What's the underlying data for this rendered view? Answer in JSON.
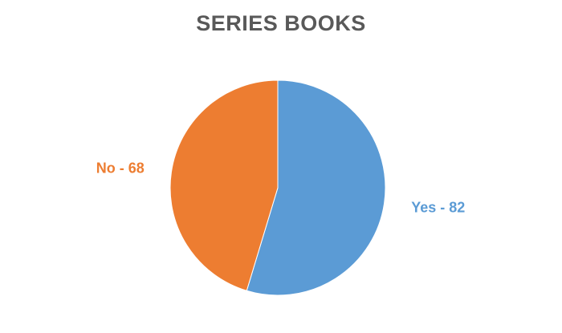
{
  "chart_data": {
    "type": "pie",
    "title": "SERIES BOOKS",
    "slices": [
      {
        "label": "Yes",
        "value": 82,
        "color": "#5B9BD5",
        "data_label": "Yes - 82"
      },
      {
        "label": "No",
        "value": 68,
        "color": "#ED7D31",
        "data_label": "No - 68"
      }
    ],
    "start_angle": "12 o'clock",
    "direction": "clockwise",
    "legend": "none"
  }
}
